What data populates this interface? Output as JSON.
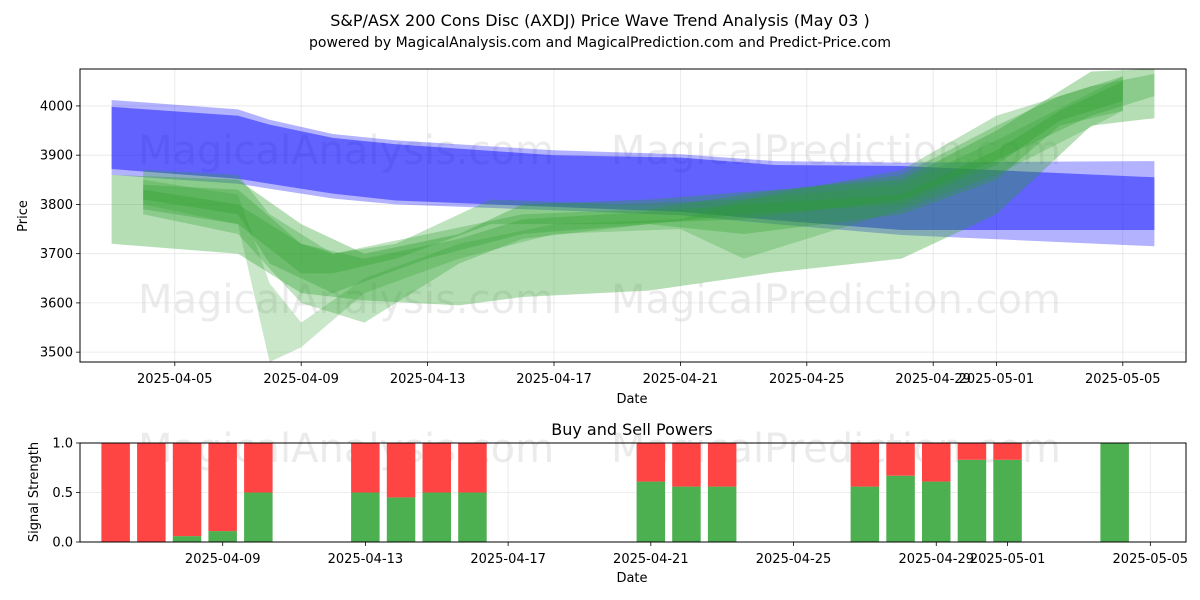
{
  "chart_data": [
    {
      "type": "area",
      "title": "S&P/ASX 200 Cons Disc (AXDJ) Price Wave Trend Analysis (May 03 )",
      "subtitle": "powered by MagicalAnalysis.com and MagicalPrediction.com and Predict-Price.com",
      "xlabel": "Date",
      "ylabel": "Price",
      "ylim": [
        3480,
        4075
      ],
      "xlim": [
        "2025-04-02",
        "2025-05-07"
      ],
      "yticks": [
        3500,
        3600,
        3700,
        3800,
        3900,
        4000
      ],
      "xticks": [
        {
          "date": "2025-04-05",
          "label": "2025-04-05"
        },
        {
          "date": "2025-04-09",
          "label": "2025-04-09"
        },
        {
          "date": "2025-04-13",
          "label": "2025-04-13"
        },
        {
          "date": "2025-04-17",
          "label": "2025-04-17"
        },
        {
          "date": "2025-04-21",
          "label": "2025-04-21"
        },
        {
          "date": "2025-04-25",
          "label": "2025-04-25"
        },
        {
          "date": "2025-04-29",
          "label": "2025-04-29"
        },
        {
          "date": "2025-05-01",
          "label": "2025-05-01"
        },
        {
          "date": "2025-05-05",
          "label": "2025-05-05"
        }
      ],
      "watermarks": [
        "MagicalAnalysis.com",
        "MagicalPrediction.com",
        "MagicalAnalysis.com",
        "MagicalPrediction.com"
      ],
      "series": [
        {
          "name": "blue-band-outer",
          "color": "#0000ff",
          "opacity": 0.3,
          "x": [
            "2025-04-03",
            "2025-04-07",
            "2025-04-08",
            "2025-04-10",
            "2025-04-12",
            "2025-04-17",
            "2025-04-21",
            "2025-04-24",
            "2025-04-28",
            "2025-05-06"
          ],
          "upper": [
            4012,
            3993,
            3972,
            3943,
            3930,
            3910,
            3902,
            3888,
            3885,
            3888
          ],
          "lower": [
            3860,
            3842,
            3832,
            3812,
            3800,
            3788,
            3778,
            3760,
            3738,
            3715
          ]
        },
        {
          "name": "blue-band-inner",
          "color": "#0000ff",
          "opacity": 0.45,
          "x": [
            "2025-04-03",
            "2025-04-07",
            "2025-04-08",
            "2025-04-10",
            "2025-04-12",
            "2025-04-17",
            "2025-04-21",
            "2025-04-24",
            "2025-04-28",
            "2025-05-06"
          ],
          "upper": [
            3998,
            3980,
            3962,
            3935,
            3922,
            3900,
            3895,
            3880,
            3878,
            3855
          ],
          "lower": [
            3872,
            3852,
            3842,
            3822,
            3808,
            3795,
            3785,
            3768,
            3748,
            3748
          ]
        },
        {
          "name": "green-band-wide",
          "color": "#2ca02c",
          "opacity": 0.35,
          "x": [
            "2025-04-03",
            "2025-04-07",
            "2025-04-09",
            "2025-04-11",
            "2025-04-14",
            "2025-04-16",
            "2025-04-20",
            "2025-04-24",
            "2025-04-28",
            "2025-05-01",
            "2025-05-04",
            "2025-05-06"
          ],
          "upper": [
            3860,
            3850,
            3760,
            3700,
            3740,
            3800,
            3810,
            3830,
            3850,
            3950,
            4070,
            4075
          ],
          "lower": [
            3720,
            3700,
            3620,
            3605,
            3595,
            3612,
            3625,
            3662,
            3690,
            3780,
            3960,
            3975
          ]
        },
        {
          "name": "green-band-1",
          "color": "#2ca02c",
          "opacity": 0.3,
          "x": [
            "2025-04-04",
            "2025-04-07",
            "2025-04-09",
            "2025-04-11",
            "2025-04-14",
            "2025-04-16",
            "2025-04-20",
            "2025-04-23",
            "2025-04-28",
            "2025-05-01",
            "2025-05-03",
            "2025-05-05"
          ],
          "upper": [
            3830,
            3800,
            3720,
            3690,
            3730,
            3770,
            3785,
            3800,
            3820,
            3910,
            3990,
            4050
          ],
          "lower": [
            3780,
            3740,
            3600,
            3560,
            3680,
            3730,
            3760,
            3740,
            3780,
            3850,
            3960,
            3990
          ]
        },
        {
          "name": "green-band-2",
          "color": "#2ca02c",
          "opacity": 0.3,
          "x": [
            "2025-04-04",
            "2025-04-07",
            "2025-04-08",
            "2025-04-10",
            "2025-04-13",
            "2025-04-16",
            "2025-04-20",
            "2025-04-23",
            "2025-04-28",
            "2025-05-01",
            "2025-05-03",
            "2025-05-05"
          ],
          "upper": [
            3870,
            3860,
            3780,
            3700,
            3740,
            3780,
            3790,
            3820,
            3860,
            3960,
            4020,
            4060
          ],
          "lower": [
            3810,
            3780,
            3680,
            3620,
            3690,
            3740,
            3760,
            3780,
            3800,
            3880,
            3970,
            4010
          ]
        },
        {
          "name": "green-band-3",
          "color": "#2ca02c",
          "opacity": 0.25,
          "x": [
            "2025-04-04",
            "2025-04-07",
            "2025-04-08",
            "2025-04-09",
            "2025-04-11",
            "2025-04-14",
            "2025-04-17",
            "2025-04-21",
            "2025-04-23",
            "2025-04-28",
            "2025-05-01",
            "2025-05-05"
          ],
          "upper": [
            3850,
            3820,
            3640,
            3560,
            3650,
            3720,
            3760,
            3770,
            3810,
            3840,
            3930,
            4060
          ],
          "lower": [
            3800,
            3760,
            3480,
            3510,
            3620,
            3690,
            3740,
            3750,
            3690,
            3790,
            3860,
            3990
          ]
        },
        {
          "name": "green-band-4",
          "color": "#2ca02c",
          "opacity": 0.3,
          "x": [
            "2025-04-04",
            "2025-04-07",
            "2025-04-09",
            "2025-04-10",
            "2025-04-12",
            "2025-04-15",
            "2025-04-19",
            "2025-04-23",
            "2025-04-28",
            "2025-05-01",
            "2025-05-04",
            "2025-05-06"
          ],
          "upper": [
            3840,
            3830,
            3720,
            3700,
            3720,
            3810,
            3800,
            3810,
            3870,
            3980,
            4040,
            4065
          ],
          "lower": [
            3790,
            3760,
            3660,
            3660,
            3690,
            3760,
            3760,
            3770,
            3810,
            3890,
            3980,
            4020
          ]
        }
      ]
    },
    {
      "type": "bar",
      "title": "Buy and Sell Powers",
      "xlabel": "Date",
      "ylabel": "Signal Strength",
      "ylim": [
        0,
        1.0
      ],
      "xlim": [
        "2025-04-05",
        "2025-05-06"
      ],
      "yticks": [
        0.0,
        0.5,
        1.0
      ],
      "ytick_labels": [
        "0.0",
        "0.5",
        "1.0"
      ],
      "xticks": [
        {
          "date": "2025-04-09",
          "label": "2025-04-09"
        },
        {
          "date": "2025-04-13",
          "label": "2025-04-13"
        },
        {
          "date": "2025-04-17",
          "label": "2025-04-17"
        },
        {
          "date": "2025-04-21",
          "label": "2025-04-21"
        },
        {
          "date": "2025-04-25",
          "label": "2025-04-25"
        },
        {
          "date": "2025-04-29",
          "label": "2025-04-29"
        },
        {
          "date": "2025-05-01",
          "label": "2025-05-01"
        },
        {
          "date": "2025-05-05",
          "label": "2025-05-05"
        }
      ],
      "colors": {
        "buy": "#4caf50",
        "sell": "#ff4444"
      },
      "watermarks": [
        "MagicalAnalysis.com",
        "MagicalPrediction.com"
      ],
      "categories": [
        "2025-04-06",
        "2025-04-07",
        "2025-04-08",
        "2025-04-09",
        "2025-04-10",
        "2025-04-13",
        "2025-04-14",
        "2025-04-15",
        "2025-04-16",
        "2025-04-21",
        "2025-04-22",
        "2025-04-23",
        "2025-04-27",
        "2025-04-28",
        "2025-04-29",
        "2025-04-30",
        "2025-05-01",
        "2025-05-04"
      ],
      "series": [
        {
          "name": "buy",
          "values": [
            0.0,
            0.0,
            0.06,
            0.11,
            0.5,
            0.5,
            0.45,
            0.5,
            0.5,
            0.61,
            0.56,
            0.56,
            0.56,
            0.67,
            0.61,
            0.83,
            0.83,
            1.0
          ]
        },
        {
          "name": "sell",
          "values": [
            1.0,
            1.0,
            0.94,
            0.89,
            0.5,
            0.5,
            0.55,
            0.5,
            0.5,
            0.39,
            0.44,
            0.44,
            0.44,
            0.33,
            0.39,
            0.17,
            0.17,
            0.0
          ]
        }
      ]
    }
  ]
}
